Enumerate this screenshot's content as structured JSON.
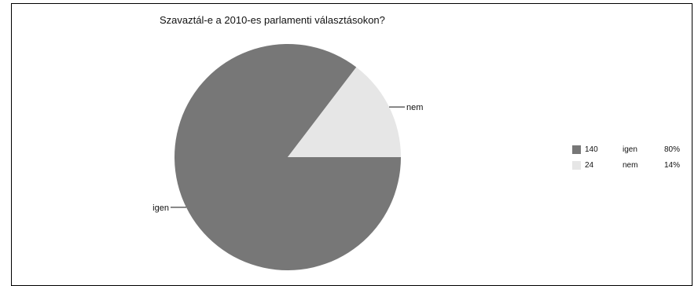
{
  "chart_data": {
    "type": "pie",
    "title": "Szavaztál-e a 2010-es parlamenti választásokon?",
    "slices": [
      {
        "label": "igen",
        "value": 140,
        "percent": "80%",
        "color": "#777777"
      },
      {
        "label": "nem",
        "value": 24,
        "percent": "14%",
        "color": "#e6e6e6"
      }
    ],
    "legend_position": "right"
  }
}
